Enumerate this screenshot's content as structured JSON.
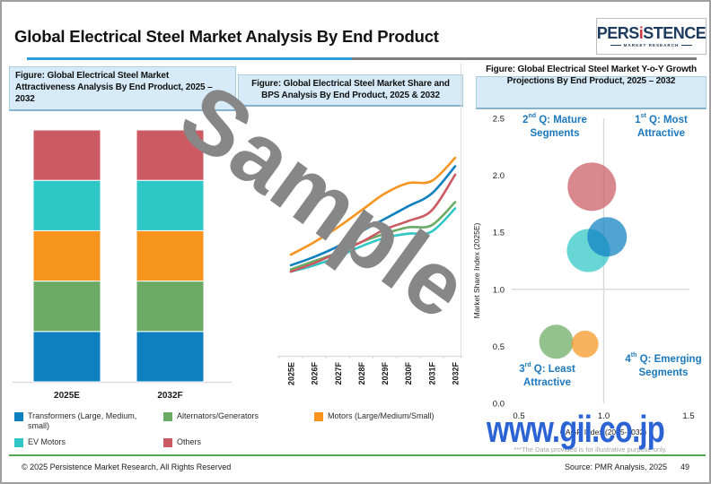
{
  "header": {
    "title": "Global Electrical Steel Market Analysis By End Product",
    "logo": {
      "brand_pre": "PERS",
      "brand_i": "i",
      "brand_post": "STENCE",
      "tagline": "MARKET RESEARCH"
    }
  },
  "panels": {
    "left": {
      "title": "Figure: Global Electrical Steel  Market Attractiveness Analysis By End Product, 2025 – 2032"
    },
    "middle": {
      "title": "Figure: Global Electrical Steel  Market Share and BPS Analysis By End Product, 2025 & 2032"
    },
    "right": {
      "title": "Figure: Global Electrical Steel  Market Y-o-Y Growth Projections By End Product, 2025 – 2032"
    }
  },
  "legend": {
    "items": [
      {
        "label": "Transformers (Large, Medium, small)",
        "color": "#0e80c0"
      },
      {
        "label": "Alternators/Generators",
        "color": "#6aaa64"
      },
      {
        "label": "Motors (Large/Medium/Small)",
        "color": "#f7941e"
      },
      {
        "label": "EV Motors",
        "color": "#2fc6c6"
      },
      {
        "label": "Others",
        "color": "#cb5a63"
      }
    ]
  },
  "chart_data": [
    {
      "type": "bar",
      "subtype": "stacked",
      "title": "Global Electrical Steel Market Attractiveness Analysis By End Product, 2025 – 2032",
      "categories": [
        "2025E",
        "2032F"
      ],
      "ylim": [
        0,
        100
      ],
      "value_note": "no value labels shown; segments approximately equal",
      "series": [
        {
          "name": "Transformers (Large, Medium, small)",
          "color": "#0e80c0",
          "values": [
            20,
            20
          ]
        },
        {
          "name": "Alternators/Generators",
          "color": "#6aaa64",
          "values": [
            20,
            20
          ]
        },
        {
          "name": "Motors (Large/Medium/Small)",
          "color": "#f7941e",
          "values": [
            20,
            20
          ]
        },
        {
          "name": "EV Motors",
          "color": "#2fc6c6",
          "values": [
            20,
            20
          ]
        },
        {
          "name": "Others",
          "color": "#cb5a63",
          "values": [
            20,
            20
          ]
        }
      ]
    },
    {
      "type": "line",
      "title": "Global Electrical Steel Market Share and BPS Analysis By End Product, 2025 & 2032",
      "x": [
        "2025E",
        "2026F",
        "2027F",
        "2028F",
        "2029F",
        "2030F",
        "2031F",
        "2032F"
      ],
      "value_note": "illustrative index values estimated from curve positions; no y-axis shown",
      "series": [
        {
          "name": "EV Motors",
          "color": "#2fc6c6",
          "values": [
            4.0,
            4.3,
            4.7,
            5.2,
            5.6,
            5.8,
            5.9,
            7.0
          ]
        },
        {
          "name": "Alternators/Generators",
          "color": "#6aaa64",
          "values": [
            4.1,
            4.5,
            4.9,
            5.4,
            5.8,
            6.1,
            6.2,
            7.3
          ]
        },
        {
          "name": "Others",
          "color": "#cb5a63",
          "values": [
            4.0,
            4.4,
            4.9,
            5.4,
            6.0,
            6.4,
            6.9,
            8.6
          ]
        },
        {
          "name": "Transformers (Large, Medium, small)",
          "color": "#0e80c0",
          "values": [
            4.3,
            4.7,
            5.2,
            5.9,
            6.5,
            7.1,
            7.7,
            9.0
          ]
        },
        {
          "name": "Motors (Large/Medium/Small)",
          "color": "#f7941e",
          "values": [
            4.8,
            5.4,
            6.1,
            6.9,
            7.7,
            8.2,
            8.3,
            9.4
          ]
        }
      ]
    },
    {
      "type": "scatter",
      "subtype": "bubble",
      "title": "Global Electrical Steel Market Y-o-Y Growth Projections By End Product, 2025 – 2032",
      "xlabel": "CAGR Index (2025-2032)",
      "ylabel": "Market Share Index (2025E)",
      "xlim": [
        0.5,
        1.5
      ],
      "ylim": [
        0.0,
        2.5
      ],
      "x_ticks": [
        "0.5",
        "1.0",
        "1.5"
      ],
      "y_ticks": [
        "0.0",
        "0.5",
        "1.0",
        "1.5",
        "2.0",
        "2.5"
      ],
      "points": [
        {
          "name": "Others",
          "x": 0.93,
          "y": 1.9,
          "r": 27,
          "color": "#cb5a63"
        },
        {
          "name": "EV Motors",
          "x": 0.91,
          "y": 1.34,
          "r": 24,
          "color": "#2fc6c6"
        },
        {
          "name": "Transformers (Large, Medium, small)",
          "x": 1.02,
          "y": 1.46,
          "r": 22,
          "color": "#0e80c0"
        },
        {
          "name": "Alternators/Generators",
          "x": 0.72,
          "y": 0.54,
          "r": 19,
          "color": "#6aaa64"
        },
        {
          "name": "Motors (Large/Medium/Small)",
          "x": 0.89,
          "y": 0.52,
          "r": 15,
          "color": "#f7941e"
        }
      ],
      "quadrants": [
        {
          "num": "2",
          "sup": "nd",
          "rest": " Q: Mature Segments"
        },
        {
          "num": "1",
          "sup": "st",
          "rest": " Q: Most Attractive"
        },
        {
          "num": "3",
          "sup": "rd",
          "rest": " Q: Least Attractive"
        },
        {
          "num": "4",
          "sup": "th",
          "rest": " Q: Emerging Segments"
        }
      ]
    }
  ],
  "footnote": "***The Data provided is for illustrative purpose only.",
  "footer": {
    "copyright": "© 2025 Persistence Market Research, All Rights Reserved",
    "source": "Source: PMR Analysis, 2025",
    "page": "49"
  },
  "watermarks": {
    "sample": "Sample",
    "site": "www.gii.co.jp"
  },
  "colors": {
    "accent_blue_rule": "#2d9fd8",
    "gray_rule": "#7f7f7f",
    "figure_box_bg": "#d6ebf7",
    "quadrant_label": "#1b78be",
    "green_rule": "#53a553",
    "watermark_gray": "#878787",
    "watermark_blue": "#2b63d5"
  }
}
